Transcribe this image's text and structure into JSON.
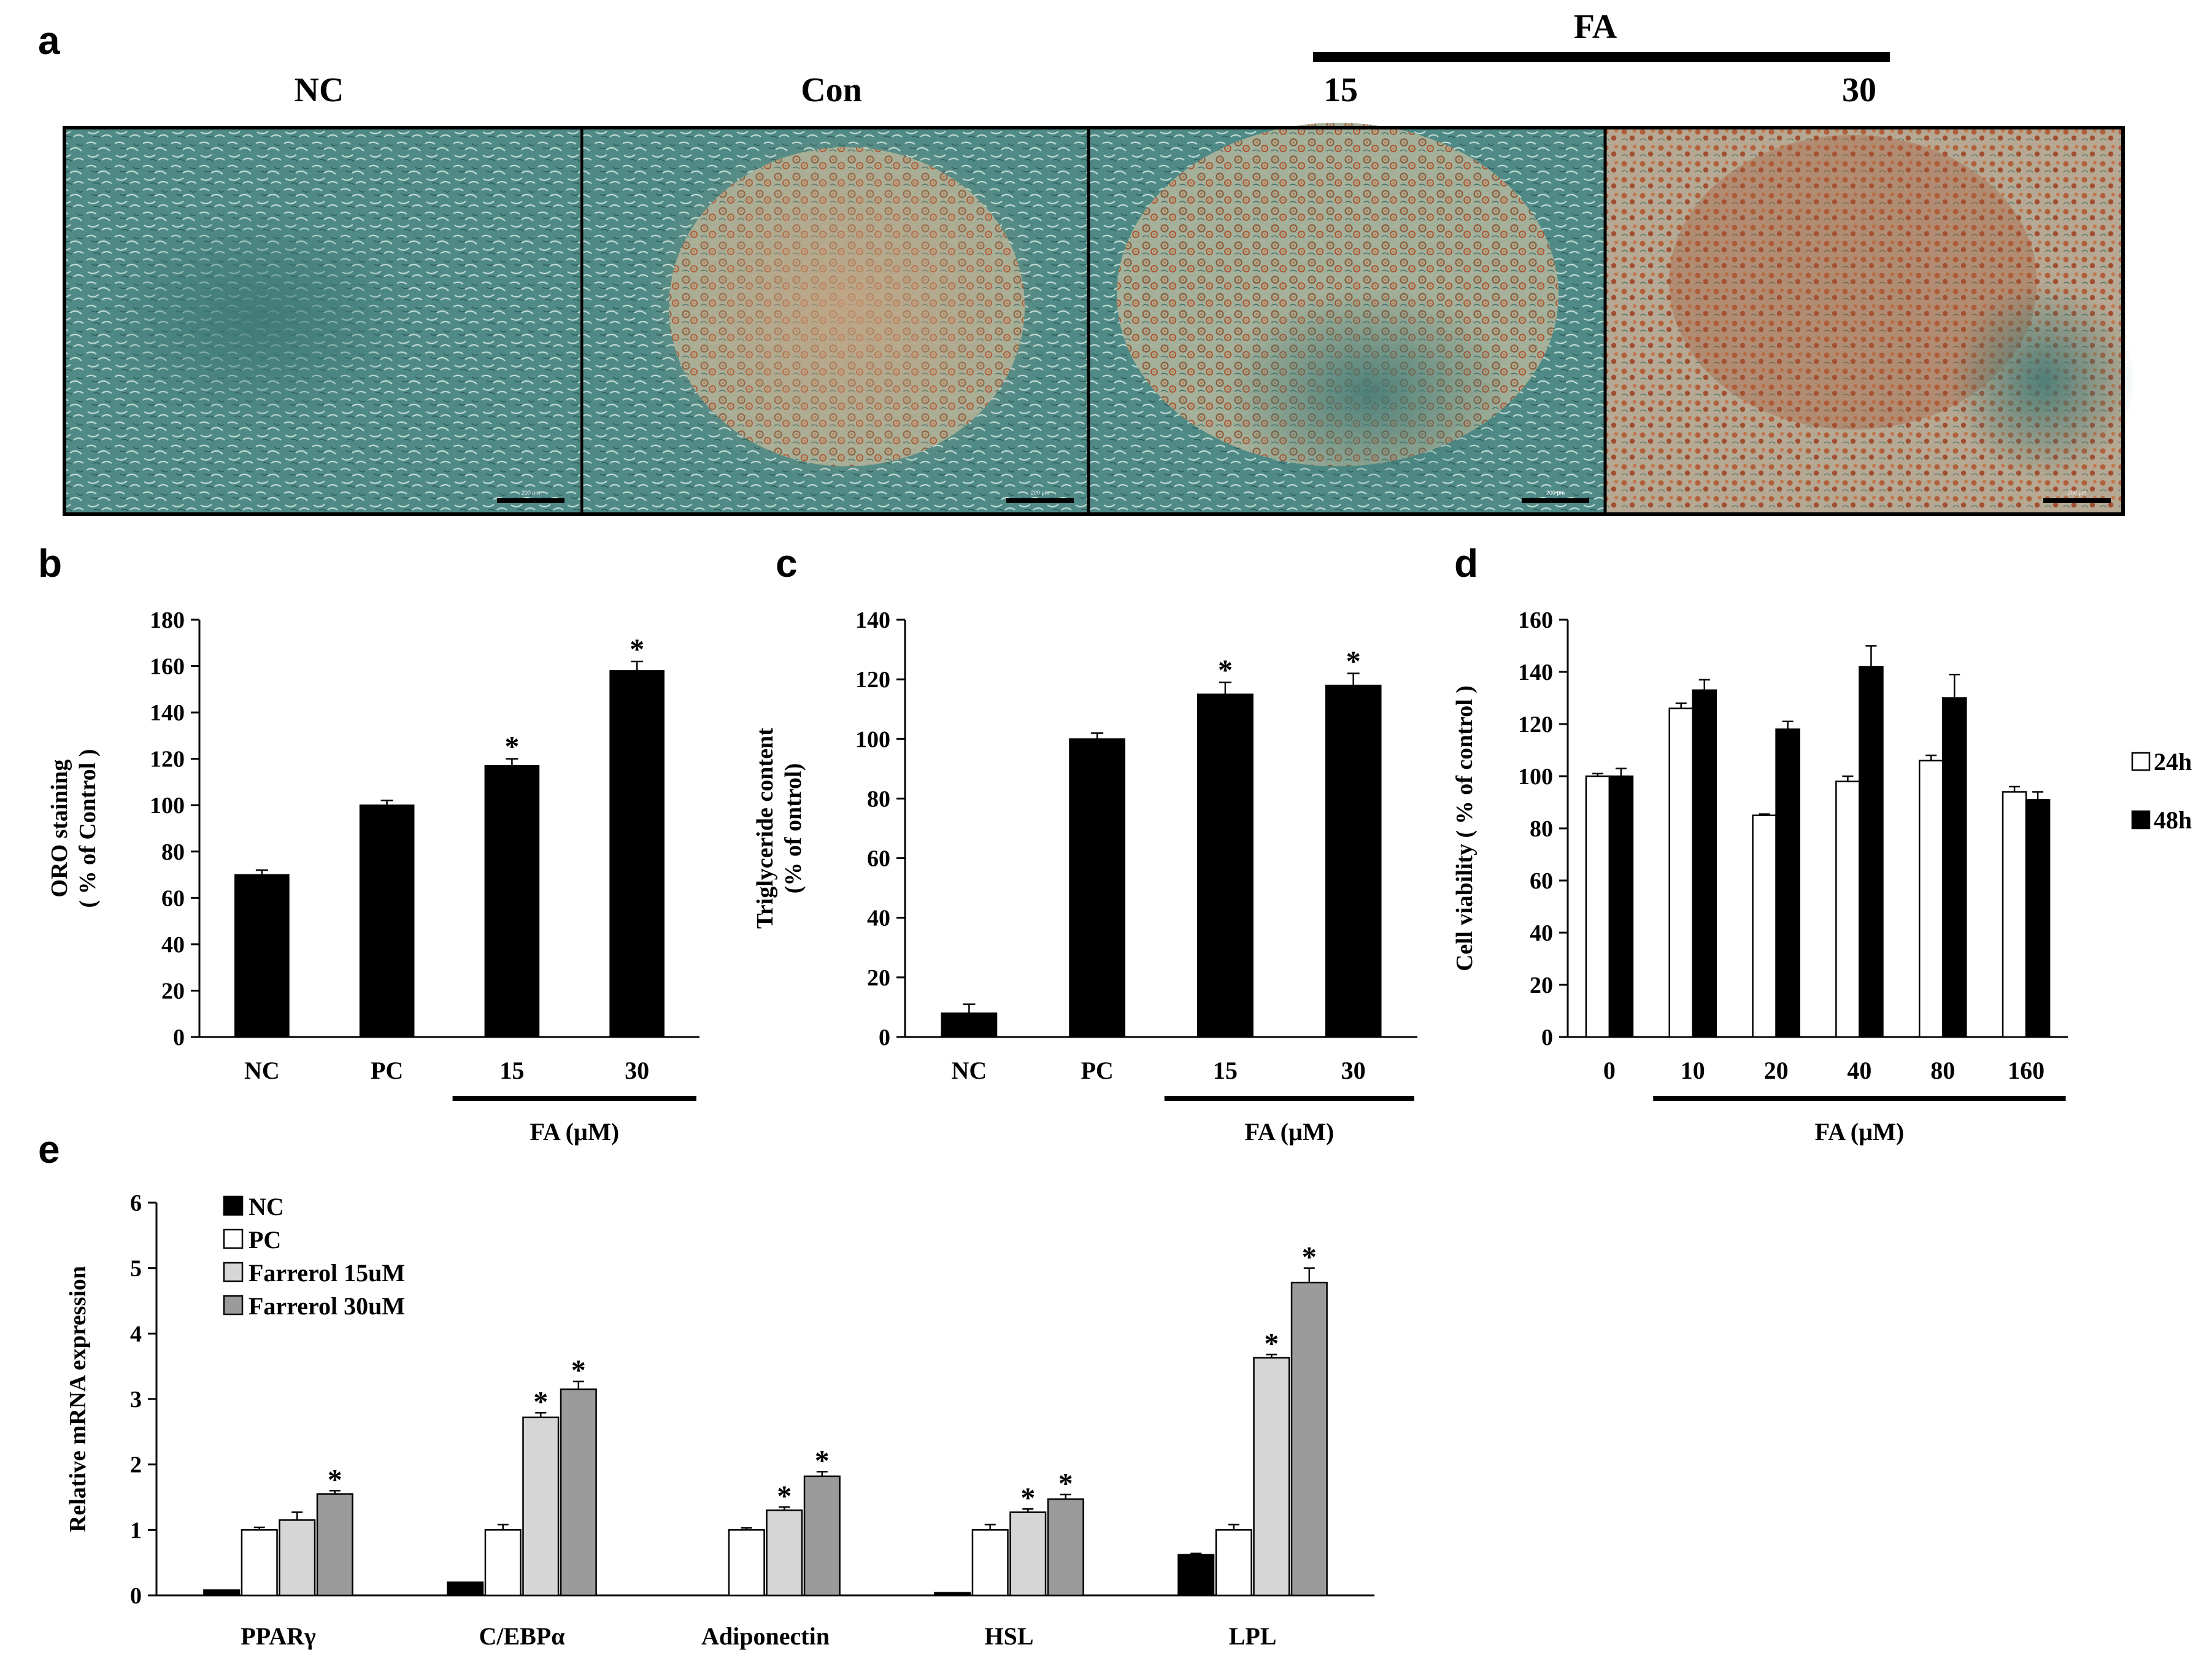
{
  "panel_labels": {
    "a": "a",
    "b": "b",
    "c": "c",
    "d": "d",
    "e": "e"
  },
  "panel_a": {
    "group_label": "FA",
    "images": [
      {
        "label": "NC",
        "scale_bar": "200 μm"
      },
      {
        "label": "Con",
        "scale_bar": "200 μm"
      },
      {
        "label": "15",
        "scale_bar": "200 μm"
      },
      {
        "label": "30",
        "scale_bar": "200 μm"
      }
    ]
  },
  "chart_data": [
    {
      "id": "b",
      "type": "bar",
      "title": "",
      "categories": [
        "NC",
        "PC",
        "15",
        "30"
      ],
      "values": [
        70,
        100,
        117,
        158
      ],
      "errors": [
        2,
        2,
        3,
        4
      ],
      "significance": [
        "",
        "",
        "*",
        "*"
      ],
      "ylabel": "ORO staining\n( % of Control )",
      "xlabel": "FA (µM)",
      "group_bar_categories": [
        "15",
        "30"
      ],
      "ylim": [
        0,
        180
      ],
      "yticks": [
        0,
        20,
        40,
        60,
        80,
        100,
        120,
        140,
        160,
        180
      ],
      "colors": [
        "#000000"
      ]
    },
    {
      "id": "c",
      "type": "bar",
      "title": "",
      "categories": [
        "NC",
        "PC",
        "15",
        "30"
      ],
      "values": [
        8,
        100,
        115,
        118
      ],
      "errors": [
        3,
        2,
        4,
        4
      ],
      "significance": [
        "",
        "",
        "*",
        "*"
      ],
      "ylabel": "Triglyceride content\n(% of ontrol)",
      "xlabel": "FA (µM)",
      "group_bar_categories": [
        "15",
        "30"
      ],
      "ylim": [
        0,
        140
      ],
      "yticks": [
        0,
        20,
        40,
        60,
        80,
        100,
        120,
        140
      ],
      "colors": [
        "#000000"
      ]
    },
    {
      "id": "d",
      "type": "bar",
      "title": "",
      "categories": [
        "0",
        "10",
        "20",
        "40",
        "80",
        "160"
      ],
      "series": [
        {
          "name": "24h",
          "values": [
            100,
            126,
            85,
            98,
            106,
            94
          ],
          "errors": [
            1,
            2,
            0.5,
            2,
            2,
            2
          ],
          "color": "#ffffff"
        },
        {
          "name": "48h",
          "values": [
            100,
            133,
            118,
            142,
            130,
            91
          ],
          "errors": [
            3,
            4,
            3,
            8,
            9,
            3
          ],
          "color": "#000000"
        }
      ],
      "ylabel": "Cell viability ( % of control )",
      "xlabel": "FA (µM)",
      "group_bar_categories": [
        "10",
        "160"
      ],
      "ylim": [
        0,
        160
      ],
      "yticks": [
        0,
        20,
        40,
        60,
        80,
        100,
        120,
        140,
        160
      ],
      "legend_position": "right"
    },
    {
      "id": "e",
      "type": "bar",
      "title": "",
      "categories": [
        "PPARγ",
        "C/EBPα",
        "Adiponectin",
        "HSL",
        "LPL"
      ],
      "series": [
        {
          "name": "NC",
          "values": [
            0.08,
            0.2,
            0.0,
            0.04,
            0.62
          ],
          "errors": [
            0,
            0,
            0,
            0,
            0.02
          ],
          "significance": [
            "",
            "",
            "",
            "",
            ""
          ],
          "color": "#000000"
        },
        {
          "name": "PC",
          "values": [
            1.0,
            1.0,
            1.0,
            1.0,
            1.0
          ],
          "errors": [
            0.04,
            0.08,
            0.03,
            0.08,
            0.08
          ],
          "significance": [
            "",
            "",
            "",
            "",
            ""
          ],
          "color": "#ffffff"
        },
        {
          "name": "Farrerol 15uM",
          "values": [
            1.15,
            2.72,
            1.3,
            1.27,
            3.63
          ],
          "errors": [
            0.12,
            0.07,
            0.05,
            0.05,
            0.05
          ],
          "significance": [
            "",
            "*",
            "*",
            "*",
            "*"
          ],
          "color": "#d6d6d6"
        },
        {
          "name": "Farrerol 30uM",
          "values": [
            1.55,
            3.15,
            1.82,
            1.47,
            4.78
          ],
          "errors": [
            0.05,
            0.12,
            0.07,
            0.07,
            0.22
          ],
          "significance": [
            "*",
            "*",
            "*",
            "*",
            "*"
          ],
          "color": "#9b9b9b"
        }
      ],
      "ylabel": "Relative mRNA expression",
      "xlabel": "",
      "ylim": [
        0,
        6
      ],
      "yticks": [
        0,
        1,
        2,
        3,
        4,
        5,
        6
      ],
      "legend_position": "top-left"
    }
  ]
}
